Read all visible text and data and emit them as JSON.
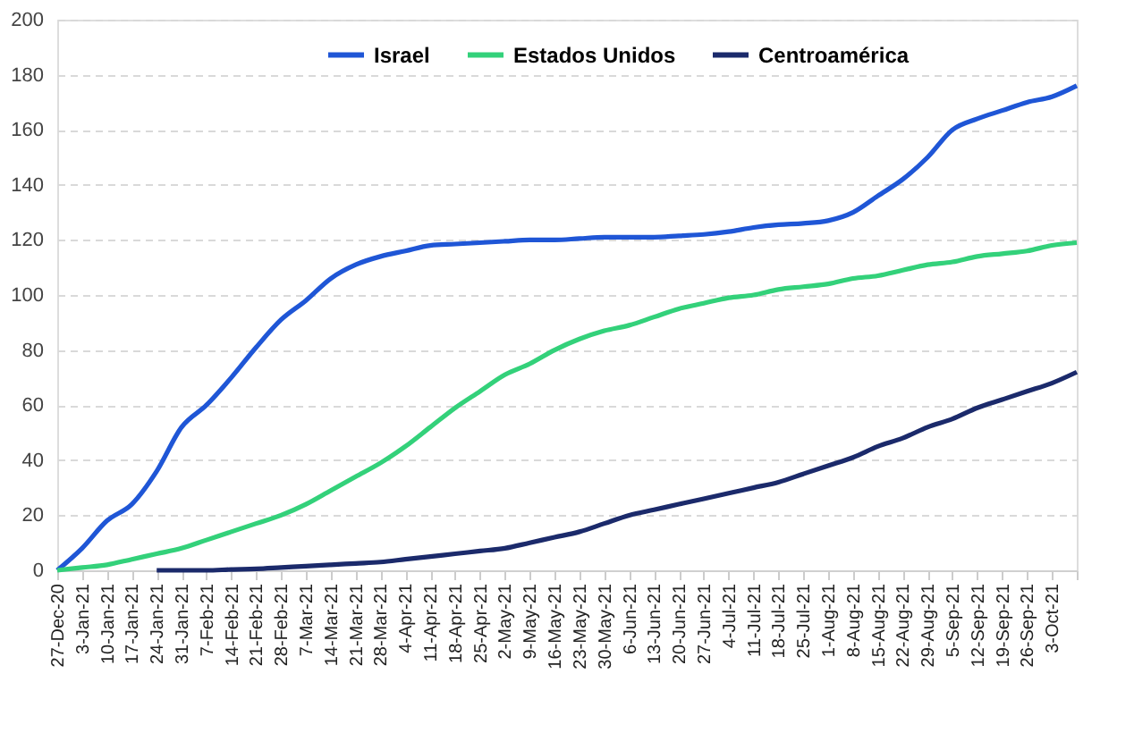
{
  "chart_data": {
    "type": "line",
    "categories": [
      "27-Dec-20",
      "3-Jan-21",
      "10-Jan-21",
      "17-Jan-21",
      "24-Jan-21",
      "31-Jan-21",
      "7-Feb-21",
      "14-Feb-21",
      "21-Feb-21",
      "28-Feb-21",
      "7-Mar-21",
      "14-Mar-21",
      "21-Mar-21",
      "28-Mar-21",
      "4-Apr-21",
      "11-Apr-21",
      "18-Apr-21",
      "25-Apr-21",
      "2-May-21",
      "9-May-21",
      "16-May-21",
      "23-May-21",
      "30-May-21",
      "6-Jun-21",
      "13-Jun-21",
      "20-Jun-21",
      "27-Jun-21",
      "4-Jul-21",
      "11-Jul-21",
      "18-Jul-21",
      "25-Jul-21",
      "1-Aug-21",
      "8-Aug-21",
      "15-Aug-21",
      "22-Aug-21",
      "29-Aug-21",
      "5-Sep-21",
      "12-Sep-21",
      "19-Sep-21",
      "26-Sep-21",
      "3-Oct-21",
      null
    ],
    "series": [
      {
        "name": "Israel",
        "color": "#1f56d6",
        "values": [
          0,
          8,
          18,
          24,
          36,
          52,
          60,
          70,
          81,
          91,
          98,
          106,
          111,
          114,
          116,
          118,
          118.5,
          119,
          119.5,
          120,
          120,
          120.5,
          121,
          121,
          121,
          121.5,
          122,
          123,
          124.5,
          125.5,
          126,
          127,
          130,
          136,
          142,
          150,
          160,
          164,
          167,
          170,
          172,
          176
        ]
      },
      {
        "name": "Estados Unidos",
        "color": "#33d17a",
        "values": [
          0,
          1,
          2,
          4,
          6,
          8,
          11,
          14,
          17,
          20,
          24,
          29,
          34,
          39,
          45,
          52,
          59,
          65,
          71,
          75,
          80,
          84,
          87,
          89,
          92,
          95,
          97,
          99,
          100,
          102,
          103,
          104,
          106,
          107,
          109,
          111,
          112,
          114,
          115,
          116,
          118,
          119
        ]
      },
      {
        "name": "Centroamérica",
        "color": "#1b2a6b",
        "values": [
          null,
          null,
          null,
          null,
          0,
          0,
          0,
          0.3,
          0.5,
          1,
          1.5,
          2,
          2.5,
          3,
          4,
          5,
          6,
          7,
          8,
          10,
          12,
          14,
          17,
          20,
          22,
          24,
          26,
          28,
          30,
          32,
          35,
          38,
          41,
          45,
          48,
          52,
          55,
          59,
          62,
          65,
          68,
          72
        ]
      }
    ],
    "ylim": [
      0,
      200
    ],
    "yticks": [
      0,
      20,
      40,
      60,
      80,
      100,
      120,
      140,
      160,
      180,
      200
    ],
    "grid": "y",
    "legend": "top",
    "line_style": "solid",
    "marker": "none"
  }
}
